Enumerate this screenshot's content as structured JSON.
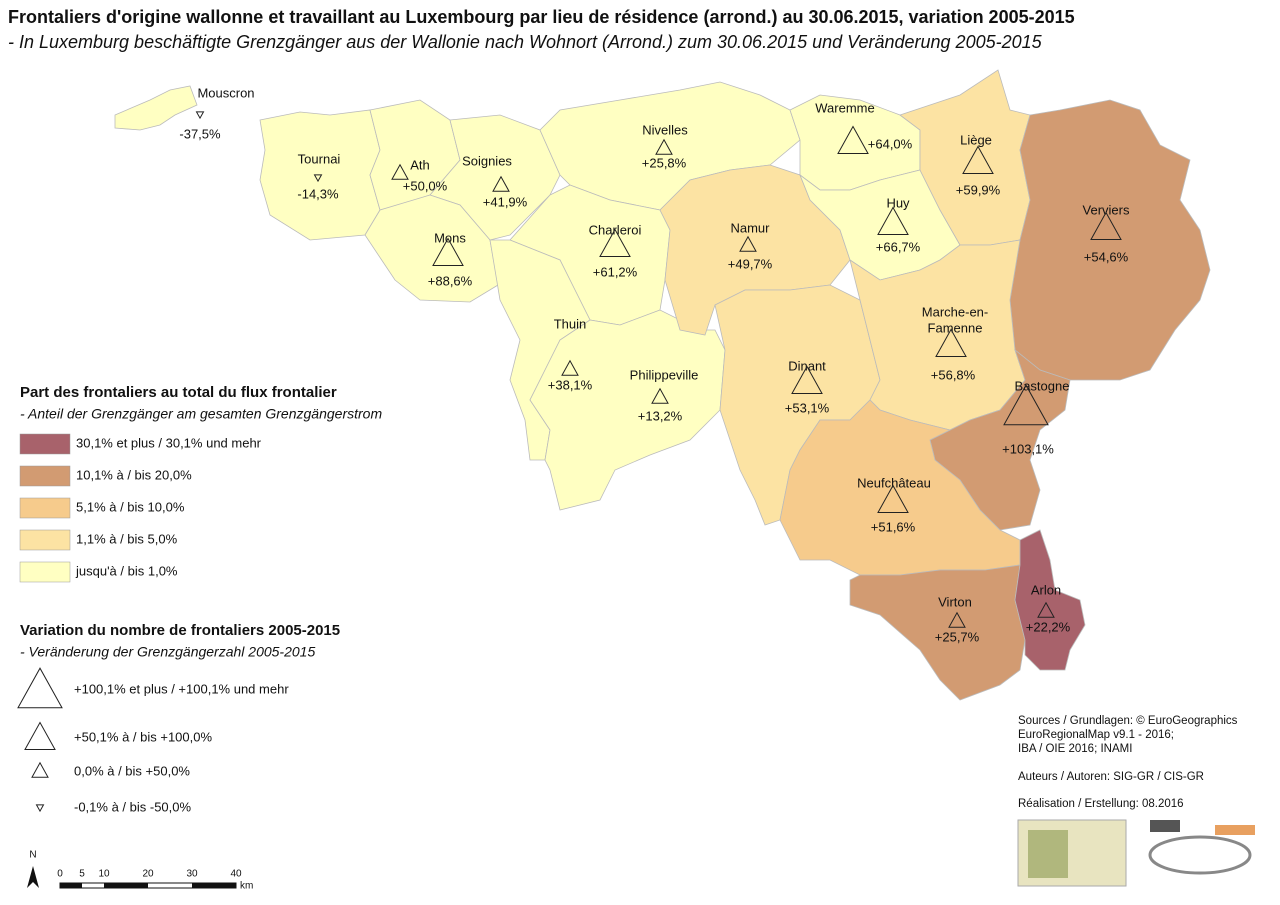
{
  "title": "Frontaliers d'origine wallonne et travaillant au Luxembourg par lieu de résidence (arrond.) au 30.06.2015, variation 2005-2015",
  "subtitle": "- In Luxemburg beschäftigte Grenzgänger aus der Wallonie nach Wohnort (Arrond.) zum 30.06.2015 und Veränderung 2005-2015",
  "districts": [
    {
      "name": "Mouscron",
      "label": "-37,5%"
    },
    {
      "name": "Tournai",
      "label": "-14,3%"
    },
    {
      "name": "Ath",
      "label": "+50,0%"
    },
    {
      "name": "Soignies",
      "label": "+41,9%"
    },
    {
      "name": "Nivelles",
      "label": "+25,8%"
    },
    {
      "name": "Waremme",
      "label": "+64,0%"
    },
    {
      "name": "Liège",
      "label": "+59,9%"
    },
    {
      "name": "Huy",
      "label": "+66,7%"
    },
    {
      "name": "Verviers",
      "label": "+54,6%"
    },
    {
      "name": "Mons",
      "label": "+88,6%"
    },
    {
      "name": "Charleroi",
      "label": "+61,2%"
    },
    {
      "name": "Namur",
      "label": "+49,7%"
    },
    {
      "name": "Thuin",
      "label": "+38,1%"
    },
    {
      "name": "Philippeville",
      "label": "+13,2%"
    },
    {
      "name": [
        "Marche-en-",
        "Famenne"
      ],
      "label": "+56,8%"
    },
    {
      "name": "Dinant",
      "label": "+53,1%"
    },
    {
      "name": "Bastogne",
      "label": "+103,1%"
    },
    {
      "name": "Neufchâteau",
      "label": "+51,6%"
    },
    {
      "name": "Arlon",
      "label": "+22,2%"
    },
    {
      "name": "Virton",
      "label": "+25,7%"
    }
  ],
  "legend_share": {
    "title": "Part des frontaliers au total du flux frontalier",
    "subtitle": "- Anteil der Grenzgänger am gesamten Grenzgängerstrom",
    "items": [
      {
        "label": "30,1% et plus / 30,1% und mehr",
        "color": "#a8626b"
      },
      {
        "label": "10,1% à / bis 20,0%",
        "color": "#d29b72"
      },
      {
        "label": "5,1% à / bis 10,0%",
        "color": "#f6cb8c"
      },
      {
        "label": "1,1% à / bis 5,0%",
        "color": "#fce3a3"
      },
      {
        "label": "jusqu'à / bis 1,0%",
        "color": "#ffffc2"
      }
    ]
  },
  "legend_variation": {
    "title": "Variation du nombre de frontaliers 2005-2015",
    "subtitle": "- Veränderung der Grenzgängerzahl 2005-2015",
    "items": [
      "+100,1% et plus / +100,1% und mehr",
      "+50,1% à / bis +100,0%",
      "0,0% à / bis +50,0%",
      "-0,1% à / bis -50,0%"
    ]
  },
  "sources": [
    "Sources / Grundlagen: © EuroGeographics",
    "EuroRegionalMap v9.1 - 2016;",
    "IBA / OIE 2016; INAMI"
  ],
  "authors": "Auteurs / Autoren: SIG-GR / CIS-GR",
  "realisation": "Réalisation / Erstellung: 08.2016",
  "scale": {
    "north": "N",
    "ticks": [
      "0",
      "5",
      "10",
      "20",
      "30",
      "40"
    ],
    "unit": "km"
  }
}
